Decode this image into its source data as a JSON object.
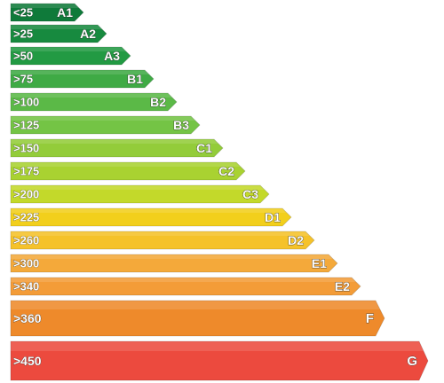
{
  "rating_scale": {
    "bands": [
      {
        "range": "<25",
        "class": "A1",
        "color": "#0f7a3a"
      },
      {
        "range": ">25",
        "class": "A2",
        "color": "#178a3f"
      },
      {
        "range": ">50",
        "class": "A3",
        "color": "#229a43"
      },
      {
        "range": ">75",
        "class": "B1",
        "color": "#3faa45"
      },
      {
        "range": ">100",
        "class": "B2",
        "color": "#5bb947"
      },
      {
        "range": ">125",
        "class": "B3",
        "color": "#74c445"
      },
      {
        "range": ">150",
        "class": "C1",
        "color": "#93cc3a"
      },
      {
        "range": ">175",
        "class": "C2",
        "color": "#a9d231"
      },
      {
        "range": ">200",
        "class": "C3",
        "color": "#c3d92a"
      },
      {
        "range": ">225",
        "class": "D1",
        "color": "#f2cf1c"
      },
      {
        "range": ">260",
        "class": "D2",
        "color": "#f5c22a"
      },
      {
        "range": ">300",
        "class": "E1",
        "color": "#f4a93a"
      },
      {
        "range": ">340",
        "class": "E2",
        "color": "#f39c38"
      },
      {
        "range": ">360",
        "class": "F",
        "color": "#ee8a2b"
      },
      {
        "range": ">450",
        "class": "G",
        "color": "#ec4a3e"
      }
    ]
  }
}
